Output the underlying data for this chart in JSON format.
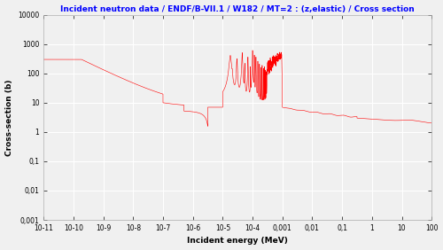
{
  "title": "Incident neutron data / ENDF/B-VII.1 / W182 / MT=2 : (z,elastic) / Cross section",
  "xlabel": "Incident energy (MeV)",
  "ylabel": "Cross-section (b)",
  "title_color": "blue",
  "title_fontsize": 6.5,
  "label_fontsize": 6.5,
  "line_color": "red",
  "line_width": 0.4,
  "xlim_log": [
    -11,
    2
  ],
  "ylim_log": [
    -3,
    4
  ],
  "background_color": "#f0f0f0",
  "grid_color": "white",
  "yticks": [
    0.001,
    0.01,
    0.1,
    1,
    10,
    100,
    1000,
    10000
  ],
  "ytick_labels": [
    "0,001",
    "0,01",
    "0,1",
    "1",
    "10",
    "100",
    "1000",
    "10000"
  ],
  "xticks": [
    1e-11,
    1e-10,
    1e-09,
    1e-08,
    1e-07,
    1e-06,
    1e-05,
    0.0001,
    0.001,
    0.01,
    0.1,
    1,
    10,
    100
  ],
  "xtick_labels": [
    "10-11",
    "10-10",
    "10-9",
    "10-8",
    "10-7",
    "10-6",
    "10-5",
    "10-4",
    "0,001",
    "0,01",
    "0,1",
    "1",
    "10",
    "100"
  ]
}
